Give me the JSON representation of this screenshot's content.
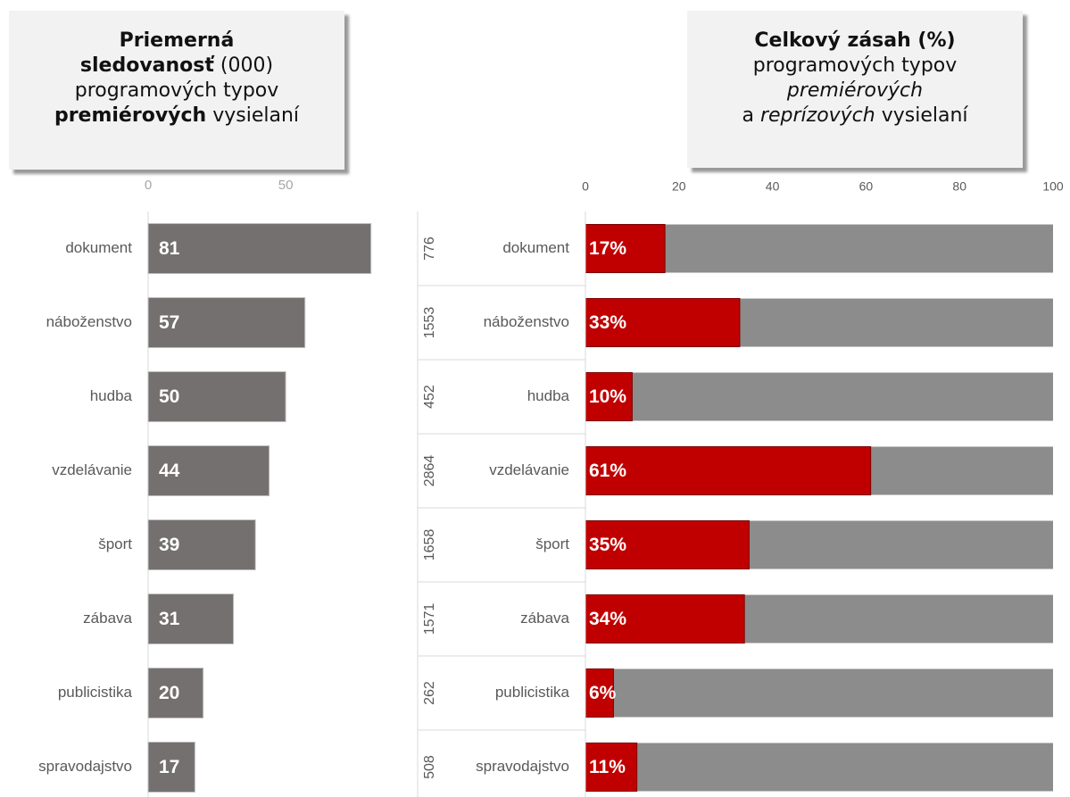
{
  "chart_data": [
    {
      "type": "bar",
      "title": [
        "Priemerná",
        "sledovanosť",
        "(000)",
        "programových typov",
        "premiérových",
        "vysielaní"
      ],
      "categories": [
        "dokument",
        "náboženstvo",
        "hudba",
        "vzdelávanie",
        "šport",
        "zábava",
        "publicistika",
        "spravodajstvo"
      ],
      "values": [
        81,
        57,
        50,
        44,
        39,
        31,
        20,
        17
      ],
      "color": "#757070",
      "xlim": [
        0,
        85
      ],
      "xticks": [
        0,
        50
      ]
    },
    {
      "type": "stacked_percent",
      "title": [
        "Celkový zásah (%)",
        "programových typov",
        "premiérových",
        "a",
        "reprízových",
        "vysielaní"
      ],
      "categories": [
        "dokument",
        "náboženstvo",
        "hudba",
        "vzdelávanie",
        "šport",
        "zábava",
        "publicistika",
        "spravodajstvo"
      ],
      "counts": [
        776,
        1553,
        452,
        2864,
        1658,
        1571,
        262,
        508
      ],
      "values": [
        17,
        33,
        10,
        61,
        35,
        34,
        6,
        11
      ],
      "value_labels": [
        "17%",
        "33%",
        "10%",
        "61%",
        "35%",
        "34%",
        "6%",
        "11%"
      ],
      "color": "#c00000",
      "track_color": "#8c8c8c",
      "xlim": [
        0,
        100
      ],
      "xticks": [
        0,
        20,
        40,
        60,
        80,
        100
      ]
    }
  ]
}
